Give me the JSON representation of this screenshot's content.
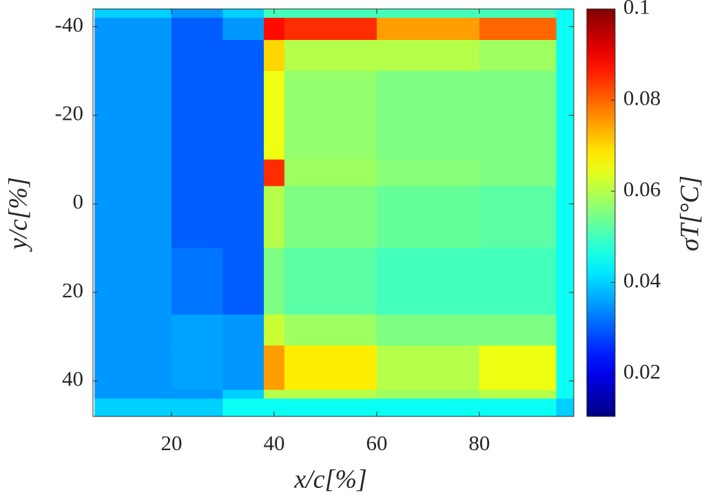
{
  "chart_data": {
    "type": "heatmap",
    "xlabel": "x/c[%]",
    "ylabel": "y/c[%]",
    "colorbar_label": "σT[°C]",
    "colormap": "jet",
    "x_edges": [
      5,
      20,
      30,
      38,
      42,
      60,
      80,
      95,
      98.4
    ],
    "y_edges": [
      -44,
      -42,
      -37,
      -30,
      -10,
      -4,
      10,
      25,
      32,
      42,
      44,
      48
    ],
    "z": [
      [
        0.04,
        0.035,
        0.04,
        0.05,
        0.05,
        0.05,
        0.05,
        0.045
      ],
      [
        0.035,
        0.03,
        0.035,
        0.088,
        0.085,
        0.075,
        0.08,
        0.045
      ],
      [
        0.035,
        0.03,
        0.03,
        0.07,
        0.06,
        0.06,
        0.058,
        0.045
      ],
      [
        0.035,
        0.03,
        0.03,
        0.065,
        0.057,
        0.055,
        0.055,
        0.045
      ],
      [
        0.035,
        0.03,
        0.03,
        0.085,
        0.058,
        0.056,
        0.055,
        0.045
      ],
      [
        0.035,
        0.03,
        0.03,
        0.06,
        0.055,
        0.053,
        0.052,
        0.045
      ],
      [
        0.035,
        0.032,
        0.03,
        0.055,
        0.052,
        0.05,
        0.05,
        0.045
      ],
      [
        0.035,
        0.036,
        0.035,
        0.062,
        0.058,
        0.055,
        0.055,
        0.045
      ],
      [
        0.035,
        0.036,
        0.035,
        0.075,
        0.068,
        0.06,
        0.065,
        0.045
      ],
      [
        0.035,
        0.035,
        0.04,
        0.06,
        0.06,
        0.058,
        0.06,
        0.045
      ],
      [
        0.04,
        0.04,
        0.045,
        0.045,
        0.045,
        0.045,
        0.045,
        0.04
      ]
    ],
    "xlim": [
      4.7,
      98.4
    ],
    "xticks": [
      20,
      40,
      60,
      80
    ],
    "ylim": [
      -44,
      48
    ],
    "yticks": [
      -40,
      -20,
      0,
      20,
      40
    ],
    "y_reversed": true,
    "clim": [
      0.0106,
      0.1
    ],
    "cticks": [
      0.02,
      0.04,
      0.06,
      0.08,
      0.1
    ]
  }
}
